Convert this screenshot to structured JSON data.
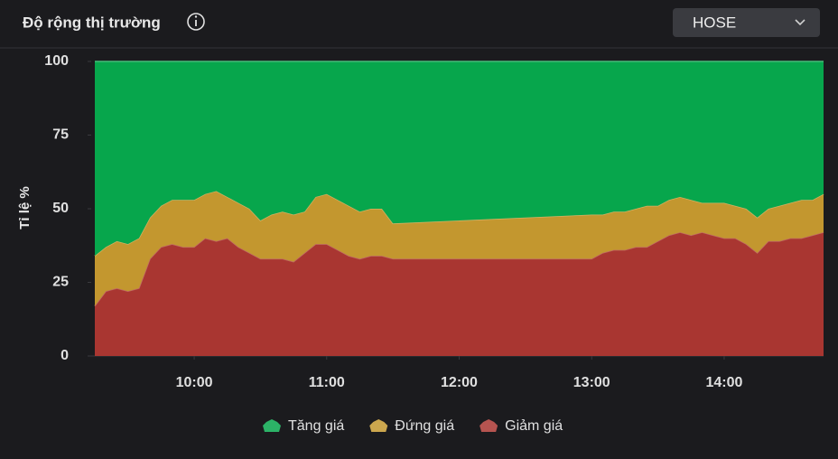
{
  "market_selector": {
    "value": "HOSE"
  },
  "chart_data": {
    "type": "stacked-area",
    "title": "Độ rộng thị trường",
    "y_label": "Tỉ lệ %",
    "x": [
      555,
      560,
      565,
      570,
      575,
      580,
      585,
      590,
      595,
      600,
      605,
      610,
      615,
      620,
      625,
      630,
      635,
      640,
      645,
      650,
      655,
      660,
      665,
      670,
      675,
      680,
      685,
      690,
      780,
      785,
      790,
      795,
      800,
      805,
      810,
      815,
      820,
      825,
      830,
      835,
      840,
      845,
      850,
      855,
      860,
      865,
      870,
      875,
      880,
      885
    ],
    "xlim": [
      555,
      885
    ],
    "xticks": [
      {
        "value": 600,
        "label": "10:00"
      },
      {
        "value": 660,
        "label": "11:00"
      },
      {
        "value": 720,
        "label": "12:00"
      },
      {
        "value": 780,
        "label": "13:00"
      },
      {
        "value": 840,
        "label": "14:00"
      }
    ],
    "ylim": [
      0,
      100
    ],
    "yticks": [
      0,
      25,
      50,
      75,
      100
    ],
    "grid": false,
    "series": [
      {
        "name": "Tăng giá",
        "color": "#07a64c",
        "values": [
          66,
          63,
          61,
          62,
          60,
          53,
          49,
          47,
          47,
          47,
          45,
          44,
          46,
          48,
          50,
          54,
          52,
          51,
          52,
          51,
          46,
          45,
          47,
          49,
          51,
          50,
          50,
          55,
          52,
          52,
          51,
          51,
          50,
          49,
          49,
          47,
          46,
          47,
          48,
          48,
          48,
          49,
          50,
          53,
          50,
          49,
          48,
          47,
          47,
          45
        ]
      },
      {
        "name": "Đứng giá",
        "color": "#c3972f",
        "values": [
          17,
          15,
          16,
          16,
          17,
          14,
          14,
          15,
          16,
          16,
          15,
          17,
          14,
          15,
          15,
          13,
          15,
          16,
          16,
          14,
          16,
          17,
          17,
          17,
          16,
          16,
          16,
          12,
          15,
          13,
          13,
          13,
          13,
          14,
          12,
          12,
          12,
          12,
          10,
          11,
          12,
          11,
          12,
          12,
          11,
          12,
          12,
          13,
          12,
          13
        ]
      },
      {
        "name": "Giảm giá",
        "color": "#a93631",
        "values": [
          17,
          22,
          23,
          22,
          23,
          33,
          37,
          38,
          37,
          37,
          40,
          39,
          40,
          37,
          35,
          33,
          33,
          33,
          32,
          35,
          38,
          38,
          36,
          34,
          33,
          34,
          34,
          33,
          33,
          35,
          36,
          36,
          37,
          37,
          39,
          41,
          42,
          41,
          42,
          41,
          40,
          40,
          38,
          35,
          39,
          39,
          40,
          40,
          41,
          42
        ]
      }
    ]
  }
}
